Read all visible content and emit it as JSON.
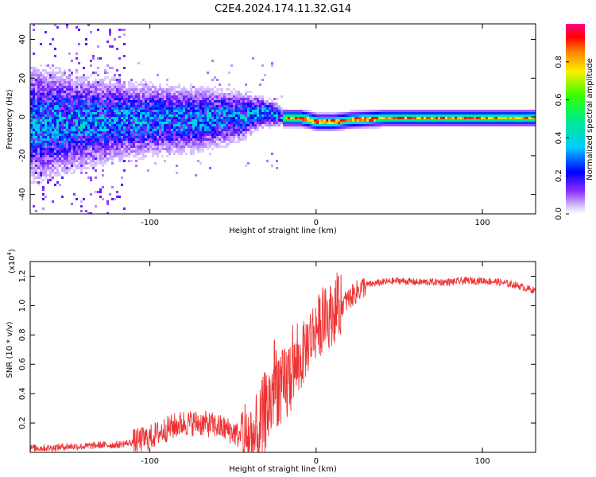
{
  "title": "C2E4.2024.174.11.32.G14",
  "colorbar": {
    "label": "Normalized spectral amplitude",
    "ticks": [
      "0.0",
      "0.2",
      "0.4",
      "0.6",
      "0.8"
    ],
    "tick_values": [
      0.0,
      0.2,
      0.4,
      0.6,
      0.8
    ]
  },
  "chart_data": [
    {
      "type": "heatmap",
      "xlabel": "Height of straight line (km)",
      "ylabel": "Frequency (Hz)",
      "xlim": [
        -172,
        132
      ],
      "ylim": [
        -50,
        48
      ],
      "xticks": [
        -100,
        0,
        100
      ],
      "xtick_labels": [
        "-100",
        "0",
        "100"
      ],
      "yticks": [
        -40,
        -20,
        0,
        20,
        40
      ],
      "ytick_labels": [
        "-40",
        "-20",
        "0",
        "20",
        "40"
      ],
      "value_range": [
        0,
        1
      ],
      "ridge": {
        "x": [
          -170,
          -140,
          -110,
          -80,
          -60,
          -45,
          -35,
          -25,
          -20,
          -15,
          -10,
          -5,
          0,
          10,
          20,
          40,
          60,
          80,
          100,
          132
        ],
        "freq": [
          -3,
          -2,
          -1,
          -1,
          0,
          1,
          3,
          2,
          0,
          0,
          0,
          -1,
          -2,
          -2,
          -1,
          0,
          0,
          0,
          0,
          0
        ],
        "spread_hz": [
          14,
          11,
          9,
          8,
          7,
          6,
          4,
          3,
          2,
          2,
          2,
          2,
          2,
          2,
          2,
          2,
          2,
          2,
          2,
          2
        ]
      }
    },
    {
      "type": "line",
      "xlabel": "Height of straight line (km)",
      "ylabel": "SNR (10 * v/v)",
      "multiplier_label": "(x10",
      "multiplier_exp": "4",
      "multiplier_close": ")",
      "xlim": [
        -172,
        132
      ],
      "ylim": [
        0,
        1.3
      ],
      "xticks": [
        -100,
        0,
        100
      ],
      "xtick_labels": [
        "-100",
        "0",
        "100"
      ],
      "yticks": [
        0.2,
        0.4,
        0.6,
        0.8,
        1.0,
        1.2
      ],
      "ytick_labels": [
        "0.2",
        "0.4",
        "0.6",
        "0.8",
        "1.0",
        "1.2"
      ],
      "color": "#ee3333",
      "series": [
        {
          "x": [
            -172,
            -160,
            -150,
            -140,
            -130,
            -120,
            -110,
            -100,
            -90,
            -80,
            -70,
            -60,
            -50,
            -45,
            -40,
            -35,
            -30,
            -27,
            -25,
            -22,
            -20,
            -15,
            -10,
            -5,
            0,
            5,
            10,
            15,
            20,
            25,
            30,
            40,
            50,
            60,
            70,
            80,
            90,
            100,
            110,
            120,
            132
          ],
          "y": [
            0.03,
            0.03,
            0.04,
            0.04,
            0.05,
            0.05,
            0.07,
            0.1,
            0.16,
            0.2,
            0.2,
            0.18,
            0.14,
            0.1,
            0.08,
            0.1,
            0.3,
            0.35,
            0.5,
            0.45,
            0.4,
            0.55,
            0.6,
            0.75,
            0.85,
            0.9,
            0.95,
            1.0,
            1.05,
            1.1,
            1.14,
            1.16,
            1.17,
            1.16,
            1.16,
            1.16,
            1.17,
            1.17,
            1.16,
            1.14,
            1.1
          ]
        }
      ]
    }
  ]
}
